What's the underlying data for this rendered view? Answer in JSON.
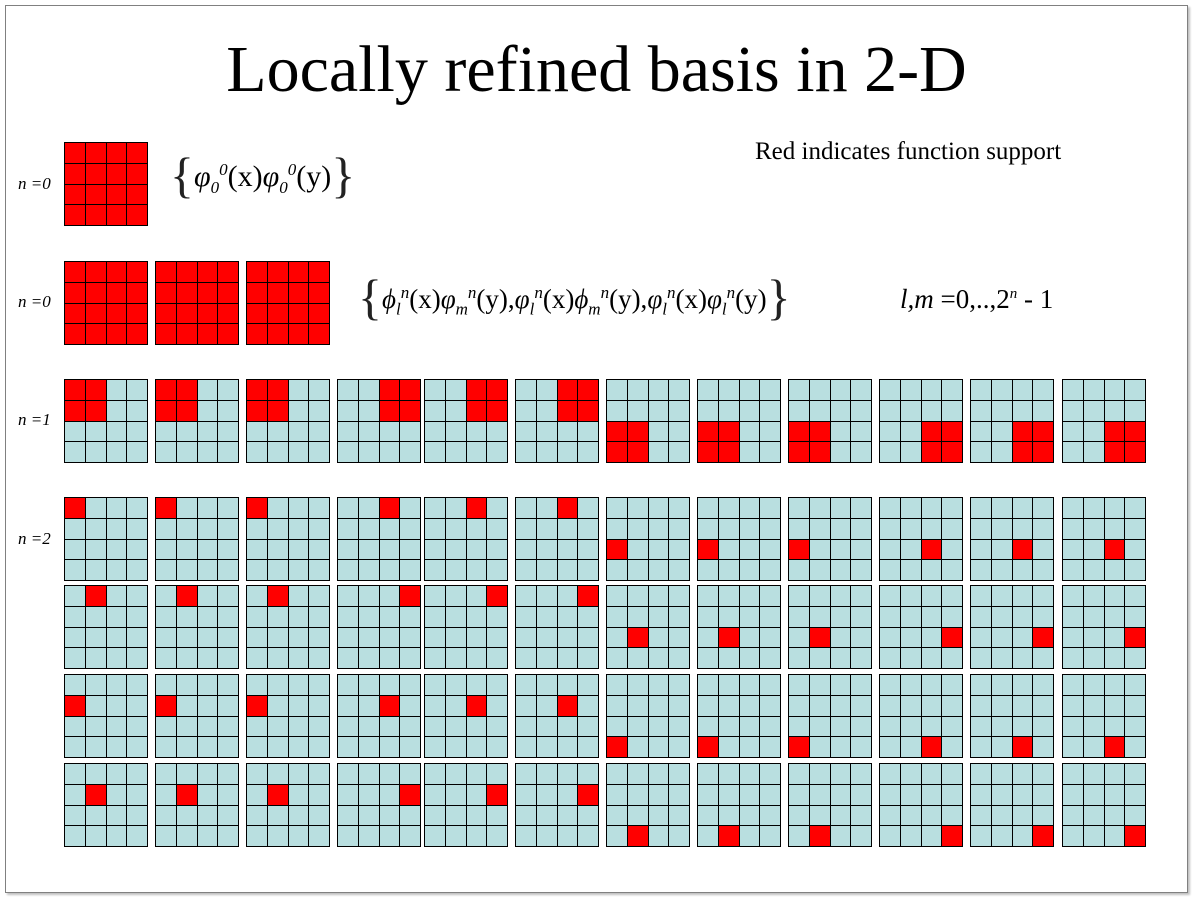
{
  "title": "Locally refined basis in 2-D",
  "note": "Red indicates function support",
  "row_labels": {
    "r0a": "n =0",
    "r0b": "n =0",
    "r1": "n =1",
    "r2": "n =2"
  },
  "formula_a": {
    "open": "{",
    "close": "}",
    "f1": "φ",
    "f1_sub": "0",
    "f1_sup": "0",
    "f1_arg": "(x)",
    "f2": "φ",
    "f2_sub": "0",
    "f2_sup": "0",
    "f2_arg": "(y)"
  },
  "formula_b": {
    "open": "{",
    "close": "}",
    "t1a": "ϕ",
    "t1a_sub": "l",
    "t1a_sup": "n",
    "t1a_arg": "(x)",
    "t1b": "φ",
    "t1b_sub": "m",
    "t1b_sup": "n",
    "t1b_arg": "(y),",
    "t2a": "φ",
    "t2a_sub": "l",
    "t2a_sup": "n",
    "t2a_arg": "(x)",
    "t2b": "ϕ",
    "t2b_sub": "m",
    "t2b_sup": "n",
    "t2b_arg": "(y),",
    "t3a": "φ",
    "t3a_sub": "l",
    "t3a_sup": "n",
    "t3a_arg": "(x)",
    "t3b": "φ",
    "t3b_sub": "l",
    "t3b_sup": "n",
    "t3b_arg": "(y)"
  },
  "condition": {
    "vars": "l,m",
    "eq": " =0,..,2",
    "exp": "n",
    "tail": " - 1"
  },
  "colors": {
    "support": "#ff0000",
    "background_cell": "#b9dfe0",
    "grid_line": "#000000"
  },
  "grids": {
    "row0_count": 1,
    "row0b_count": 3,
    "row1_support_blocks": [
      "TL",
      "TL",
      "TL",
      "TR",
      "TR",
      "TR",
      "BL",
      "BL",
      "BL",
      "BR",
      "BR",
      "BR"
    ],
    "row2_support_cells": "each column x each row: one red cell at its (col,row) in the 4x4 grid"
  }
}
